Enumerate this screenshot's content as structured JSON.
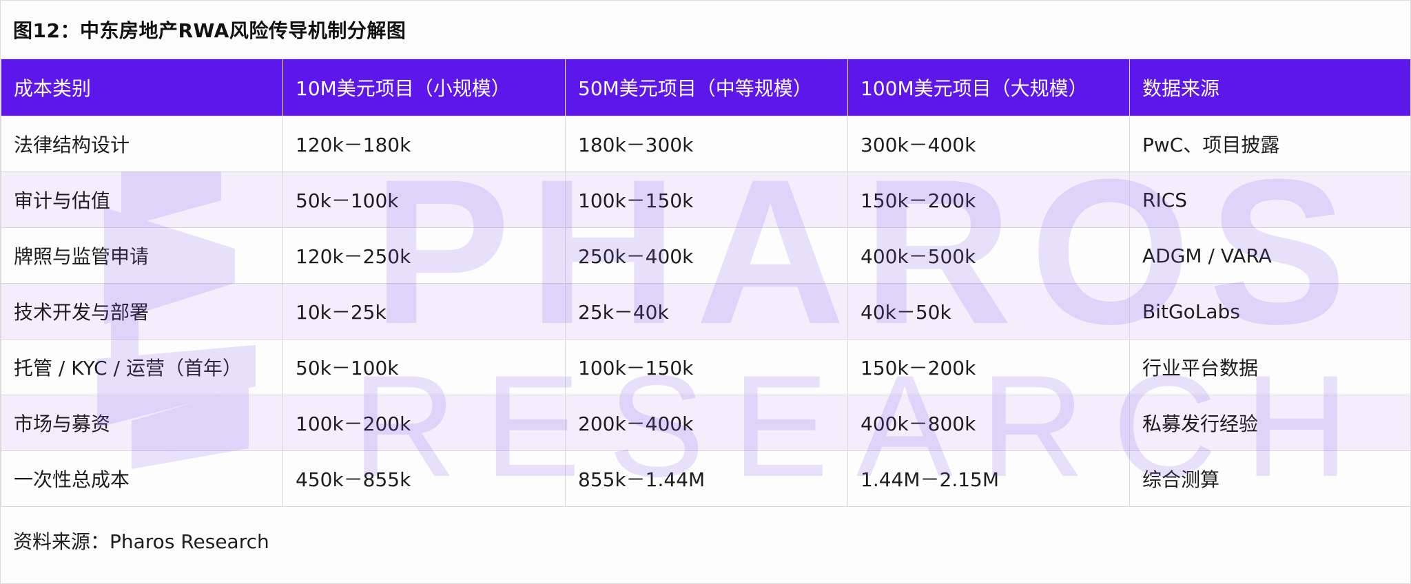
{
  "title": "图12：中东房地产RWA风险传导机制分解图",
  "table": {
    "headers": [
      "成本类别",
      "10M美元项目（小规模）",
      "50M美元项目（中等规模）",
      "100M美元项目（大规模）",
      "数据来源"
    ],
    "rows": [
      [
        "法律结构设计",
        "120k－180k",
        "180k－300k",
        "300k－400k",
        "PwC、项目披露"
      ],
      [
        "审计与估值",
        "50k－100k",
        "100k－150k",
        "150k－200k",
        "RICS"
      ],
      [
        "牌照与监管申请",
        "120k－250k",
        "250k－400k",
        "400k－500k",
        "ADGM / VARA"
      ],
      [
        "技术开发与部署",
        "10k－25k",
        "25k－40k",
        "40k－50k",
        "BitGoLabs"
      ],
      [
        "托管 / KYC / 运营（首年）",
        "50k－100k",
        "100k－150k",
        "150k－200k",
        "行业平台数据"
      ],
      [
        "市场与募资",
        "100k－200k",
        "200k－400k",
        "400k－800k",
        "私募发行经验"
      ],
      [
        "一次性总成本",
        "450k－855k",
        "855k－1.44M",
        "1.44M－2.15M",
        "综合测算"
      ]
    ]
  },
  "footer": "资料来源：Pharos Research",
  "watermark": {
    "line1": "PHAROS",
    "line2": "RESEARCH"
  },
  "colors": {
    "header_bg": "#5e17eb",
    "header_text": "#ffffff",
    "stripe": "#f0e8fc",
    "watermark": "#7b4ff0"
  }
}
